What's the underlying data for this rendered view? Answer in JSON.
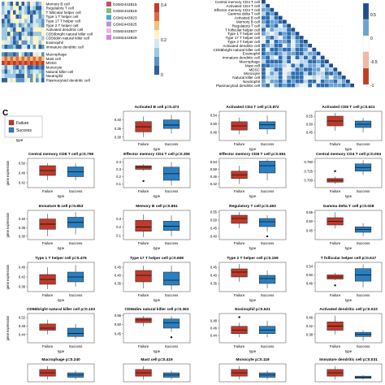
{
  "panel_c_label": "C",
  "heatmap_left": {
    "row_labels": [
      "Memory B cell",
      "Regulatory T cell",
      "T follicular helper cell",
      "Type 1 T helper cell",
      "Type 17 T helper cell",
      "Type 2 T helper cell",
      "Activated dendritic cell",
      "CD56bright natural killer cell",
      "CD56dim natural killer cell",
      "Eosinophil",
      "Immature dendritic cell",
      "Macrophage",
      "Mast cell",
      "MDSC",
      "Monocyte",
      "Natural killer cell",
      "Neutrophil",
      "Plasmacytoid dendritic cell"
    ],
    "legend_samples": [
      "GSM2443815",
      "GSM2443819",
      "GSM2443823",
      "GSM2443825",
      "GSM2443827",
      "GSM2443829"
    ],
    "legend_sample_colors": [
      "#c44e6c",
      "#7ac26e",
      "#4da6d8",
      "#b794d9",
      "#f1b6da",
      "#e57fd3"
    ],
    "scale_ticks": [
      "0.4",
      "0.2",
      "0"
    ]
  },
  "correlation": {
    "row_labels": [
      "Central memory CD4 T cell",
      "Activated CD4 T cell",
      "Effector memory CD4 T cell",
      "Gamma delta T cell",
      "Activated B cell",
      "Memory B cell",
      "Regulatory T cell",
      "T follicular helper cell",
      "Type 1 T helper cell",
      "Type 17 T helper cell",
      "Type 2 T helper cell",
      "Activated dendritic cell",
      "CD56bright natural killer cell",
      "Eosinophil",
      "Immature dendritic cell",
      "Macrophage",
      "Mast cell",
      "MDSC",
      "Monocyte",
      "Natural killer cell",
      "Neutrophil",
      "Plasmacytoid dendritic cell"
    ],
    "scale_ticks": [
      "0.5",
      "0",
      "-0.5",
      "-1"
    ]
  },
  "boxplot_legend": {
    "title": "type",
    "items": [
      "Failure",
      "Success"
    ],
    "colors": [
      "#c0392b",
      "#2a7fc1"
    ]
  },
  "chart_data": {
    "type": "box",
    "group_labels": [
      "Failure",
      "Success"
    ],
    "xlabel": "type",
    "ylabel": "gene expression",
    "panels": [
      {
        "title": "Activated B cell p=0.473",
        "ylim": [
          0.28,
          0.45
        ],
        "ticks": [
          "0.40",
          "0.35",
          "0.30"
        ],
        "boxes": [
          {
            "q1": 0.33,
            "med": 0.36,
            "q3": 0.39,
            "lo": 0.3,
            "hi": 0.42,
            "out": []
          },
          {
            "q1": 0.35,
            "med": 0.37,
            "q3": 0.4,
            "lo": 0.32,
            "hi": 0.43,
            "out": []
          }
        ]
      },
      {
        "title": "Activated CD4 T cell p=0.872",
        "ylim": [
          0.42,
          0.56
        ],
        "ticks": [
          "0.54",
          "0.50",
          "0.46"
        ],
        "boxes": [
          {
            "q1": 0.47,
            "med": 0.49,
            "q3": 0.51,
            "lo": 0.45,
            "hi": 0.53,
            "out": []
          },
          {
            "q1": 0.475,
            "med": 0.495,
            "q3": 0.51,
            "lo": 0.45,
            "hi": 0.54,
            "out": []
          }
        ]
      },
      {
        "title": "Activated CD8 T cell p=0.621",
        "ylim": [
          0.4,
          0.58
        ],
        "ticks": [
          "0.55",
          "0.50",
          "0.45"
        ],
        "boxes": [
          {
            "q1": 0.49,
            "med": 0.52,
            "q3": 0.55,
            "lo": 0.46,
            "hi": 0.57,
            "out": []
          },
          {
            "q1": 0.48,
            "med": 0.5,
            "q3": 0.52,
            "lo": 0.45,
            "hi": 0.54,
            "out": []
          }
        ]
      },
      {
        "title": "Central memory CD8 T cell p=0.759",
        "ylim": [
          0.4,
          0.52
        ],
        "ticks": [
          "0.50",
          "0.46",
          "0.42"
        ],
        "boxes": [
          {
            "q1": 0.45,
            "med": 0.47,
            "q3": 0.49,
            "lo": 0.43,
            "hi": 0.5,
            "out": []
          },
          {
            "q1": 0.445,
            "med": 0.465,
            "q3": 0.485,
            "lo": 0.43,
            "hi": 0.5,
            "out": []
          }
        ]
      },
      {
        "title": "Effector memory CD4 T cell p=0.306",
        "ylim": [
          0.05,
          0.45
        ],
        "ticks": [
          "0.4",
          "0.3",
          "0.2",
          "0.1"
        ],
        "boxes": [
          {
            "q1": 0.3,
            "med": 0.33,
            "q3": 0.35,
            "lo": 0.28,
            "hi": 0.37,
            "out": [
              0.14
            ]
          },
          {
            "q1": 0.15,
            "med": 0.24,
            "q3": 0.33,
            "lo": 0.08,
            "hi": 0.4,
            "out": []
          }
        ]
      },
      {
        "title": "Effector memory CD8 T cell p=0.551",
        "ylim": [
          0.4,
          0.56
        ],
        "ticks": [
          "0.54",
          "0.50",
          "0.46",
          "0.42"
        ],
        "boxes": [
          {
            "q1": 0.45,
            "med": 0.47,
            "q3": 0.49,
            "lo": 0.42,
            "hi": 0.52,
            "out": []
          },
          {
            "q1": 0.48,
            "med": 0.52,
            "q3": 0.545,
            "lo": 0.44,
            "hi": 0.555,
            "out": []
          }
        ]
      },
      {
        "title": "Central memory CD4 T cell p=0.004",
        "ylim": [
          0.68,
          0.76
        ],
        "ticks": [
          "0.750",
          "0.725",
          "0.700"
        ],
        "boxes": [
          {
            "q1": 0.695,
            "med": 0.7,
            "q3": 0.705,
            "lo": 0.69,
            "hi": 0.71,
            "out": [
              0.725
            ]
          },
          {
            "q1": 0.725,
            "med": 0.735,
            "q3": 0.745,
            "lo": 0.715,
            "hi": 0.755,
            "out": []
          }
        ]
      },
      {
        "title": "Immature B cell p=0.853",
        "ylim": [
          0.28,
          0.45
        ],
        "ticks": [
          "0.40",
          "0.35",
          "0.30"
        ],
        "boxes": [
          {
            "q1": 0.34,
            "med": 0.37,
            "q3": 0.4,
            "lo": 0.3,
            "hi": 0.43,
            "out": []
          },
          {
            "q1": 0.35,
            "med": 0.38,
            "q3": 0.41,
            "lo": 0.31,
            "hi": 0.44,
            "out": []
          }
        ]
      },
      {
        "title": "Memory B cell p=0.861",
        "ylim": [
          0.05,
          0.4
        ],
        "ticks": [
          "0.3",
          "0.2",
          "0.1"
        ],
        "boxes": [
          {
            "q1": 0.15,
            "med": 0.2,
            "q3": 0.28,
            "lo": 0.08,
            "hi": 0.35,
            "out": []
          },
          {
            "q1": 0.16,
            "med": 0.21,
            "q3": 0.27,
            "lo": 0.09,
            "hi": 0.34,
            "out": []
          }
        ]
      },
      {
        "title": "Regulatory T cell p=0.493",
        "ylim": [
          0.38,
          0.56
        ],
        "ticks": [
          "0.55",
          "0.50",
          "0.45",
          "0.40"
        ],
        "boxes": [
          {
            "q1": 0.48,
            "med": 0.51,
            "q3": 0.53,
            "lo": 0.45,
            "hi": 0.55,
            "out": []
          },
          {
            "q1": 0.46,
            "med": 0.49,
            "q3": 0.51,
            "lo": 0.43,
            "hi": 0.53,
            "out": [
              0.4
            ]
          }
        ]
      },
      {
        "title": "Gamma delta T cell p=0.028",
        "ylim": [
          0.4,
          0.56
        ],
        "ticks": [
          "0.55",
          "0.50",
          "0.45"
        ],
        "boxes": [
          {
            "q1": 0.48,
            "med": 0.5,
            "q3": 0.52,
            "lo": 0.46,
            "hi": 0.55,
            "out": []
          },
          {
            "q1": 0.44,
            "med": 0.455,
            "q3": 0.47,
            "lo": 0.42,
            "hi": 0.49,
            "out": []
          }
        ]
      },
      {
        "title": "Type 1 T helper cell p=0.476",
        "ylim": [
          0.36,
          0.48
        ],
        "ticks": [
          "0.46",
          "0.42",
          "0.38"
        ],
        "boxes": [
          {
            "q1": 0.39,
            "med": 0.41,
            "q3": 0.43,
            "lo": 0.37,
            "hi": 0.46,
            "out": []
          },
          {
            "q1": 0.4,
            "med": 0.42,
            "q3": 0.44,
            "lo": 0.38,
            "hi": 0.47,
            "out": []
          }
        ]
      },
      {
        "title": "Type 17 T helper cell p=0.608",
        "ylim": [
          0.3,
          0.48
        ],
        "ticks": [
          "0.45",
          "0.40",
          "0.35"
        ],
        "boxes": [
          {
            "q1": 0.36,
            "med": 0.4,
            "q3": 0.43,
            "lo": 0.32,
            "hi": 0.46,
            "out": []
          },
          {
            "q1": 0.34,
            "med": 0.37,
            "q3": 0.42,
            "lo": 0.31,
            "hi": 0.46,
            "out": []
          }
        ]
      },
      {
        "title": "Type 2 T helper cell p=0.159",
        "ylim": [
          0.3,
          0.48
        ],
        "ticks": [
          "0.45",
          "0.40",
          "0.35"
        ],
        "boxes": [
          {
            "q1": 0.39,
            "med": 0.42,
            "q3": 0.44,
            "lo": 0.36,
            "hi": 0.47,
            "out": []
          },
          {
            "q1": 0.35,
            "med": 0.38,
            "q3": 0.4,
            "lo": 0.32,
            "hi": 0.43,
            "out": []
          }
        ]
      },
      {
        "title": "T follicular helper cell p=0.617",
        "ylim": [
          0.42,
          0.56
        ],
        "ticks": [
          "0.54",
          "0.50",
          "0.46"
        ],
        "boxes": [
          {
            "q1": 0.48,
            "med": 0.49,
            "q3": 0.5,
            "lo": 0.475,
            "hi": 0.51,
            "out": [
              0.45
            ]
          },
          {
            "q1": 0.47,
            "med": 0.5,
            "q3": 0.53,
            "lo": 0.44,
            "hi": 0.55,
            "out": []
          }
        ]
      },
      {
        "title": "CD56bright natural killer cell p=0.103",
        "ylim": [
          0.4,
          0.54
        ],
        "ticks": [
          "0.52",
          "0.48",
          "0.44"
        ],
        "boxes": [
          {
            "q1": 0.46,
            "med": 0.47,
            "q3": 0.49,
            "lo": 0.44,
            "hi": 0.51,
            "out": []
          },
          {
            "q1": 0.43,
            "med": 0.445,
            "q3": 0.47,
            "lo": 0.42,
            "hi": 0.49,
            "out": []
          }
        ]
      },
      {
        "title": "CD56dim natural killer cell p=0.363",
        "ylim": [
          0.4,
          0.56
        ],
        "ticks": [
          "0.55",
          "0.50",
          "0.45"
        ],
        "boxes": [
          {
            "q1": 0.51,
            "med": 0.525,
            "q3": 0.535,
            "lo": 0.49,
            "hi": 0.545,
            "out": []
          },
          {
            "q1": 0.48,
            "med": 0.51,
            "q3": 0.53,
            "lo": 0.46,
            "hi": 0.545,
            "out": [
              0.43
            ]
          }
        ]
      },
      {
        "title": "Eosinophil p=0.621",
        "ylim": [
          0.42,
          0.5
        ],
        "ticks": [
          "0.48",
          "0.46",
          "0.44"
        ],
        "boxes": [
          {
            "q1": 0.445,
            "med": 0.455,
            "q3": 0.465,
            "lo": 0.435,
            "hi": 0.475,
            "out": [
              0.49
            ]
          },
          {
            "q1": 0.445,
            "med": 0.455,
            "q3": 0.465,
            "lo": 0.435,
            "hi": 0.48,
            "out": []
          }
        ]
      },
      {
        "title": "Activated dendritic cell p=0.023",
        "ylim": [
          0.34,
          0.48
        ],
        "ticks": [
          "0.46",
          "0.42",
          "0.38"
        ],
        "boxes": [
          {
            "q1": 0.4,
            "med": 0.42,
            "q3": 0.44,
            "lo": 0.38,
            "hi": 0.47,
            "out": []
          },
          {
            "q1": 0.37,
            "med": 0.38,
            "q3": 0.39,
            "lo": 0.35,
            "hi": 0.4,
            "out": []
          }
        ]
      },
      {
        "title": "Macrophage p=0.240",
        "ylim": [
          0.4,
          0.56
        ],
        "ticks": [],
        "boxes": [
          {
            "q1": 0.45,
            "med": 0.48,
            "q3": 0.51,
            "lo": 0.42,
            "hi": 0.54,
            "out": []
          },
          {
            "q1": 0.44,
            "med": 0.46,
            "q3": 0.48,
            "lo": 0.42,
            "hi": 0.5,
            "out": []
          }
        ]
      },
      {
        "title": "Mast cell p=0.419",
        "ylim": [
          0.4,
          0.56
        ],
        "ticks": [],
        "boxes": [
          {
            "q1": 0.45,
            "med": 0.48,
            "q3": 0.51,
            "lo": 0.42,
            "hi": 0.54,
            "out": []
          },
          {
            "q1": 0.44,
            "med": 0.46,
            "q3": 0.48,
            "lo": 0.42,
            "hi": 0.5,
            "out": []
          }
        ]
      },
      {
        "title": "Monocyte p=0.119",
        "ylim": [
          0.4,
          0.56
        ],
        "ticks": [],
        "boxes": [
          {
            "q1": 0.45,
            "med": 0.48,
            "q3": 0.51,
            "lo": 0.42,
            "hi": 0.54,
            "out": []
          },
          {
            "q1": 0.44,
            "med": 0.46,
            "q3": 0.48,
            "lo": 0.42,
            "hi": 0.5,
            "out": []
          }
        ]
      },
      {
        "title": "Immature dendritic cell p=0.031",
        "ylim": [
          0.4,
          0.56
        ],
        "ticks": [],
        "boxes": [
          {
            "q1": 0.45,
            "med": 0.48,
            "q3": 0.51,
            "lo": 0.42,
            "hi": 0.54,
            "out": []
          },
          {
            "q1": 0.43,
            "med": 0.44,
            "q3": 0.45,
            "lo": 0.42,
            "hi": 0.46,
            "out": []
          }
        ]
      }
    ]
  }
}
